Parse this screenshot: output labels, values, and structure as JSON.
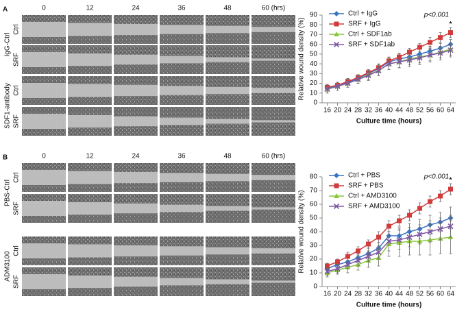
{
  "panels": [
    {
      "label": "A",
      "time_labels": [
        "0",
        "12",
        "24",
        "36",
        "48",
        "60 (hrs)"
      ],
      "groups": [
        {
          "name": "IgG-Ctrl",
          "rows": [
            "Ctrl",
            "SRF"
          ]
        },
        {
          "name": "SDF1-antibody",
          "rows": [
            "Ctrl",
            "SRF"
          ]
        }
      ]
    },
    {
      "label": "B",
      "time_labels": [
        "0",
        "12",
        "24",
        "36",
        "48",
        "60 (hrs)"
      ],
      "groups": [
        {
          "name": "PBS-Ctrl",
          "rows": [
            "Ctrl",
            "SRF"
          ]
        },
        {
          "name": "ADM3100",
          "rows": [
            "Ctrl",
            "SRF"
          ]
        }
      ]
    }
  ],
  "chart_data": [
    {
      "type": "line",
      "ylabel": "Relative wound density (%)",
      "xlabel": "Culture time (hours)",
      "annotation": "p<0.001",
      "star": "*",
      "x": [
        16,
        20,
        24,
        28,
        32,
        36,
        40,
        44,
        48,
        52,
        56,
        60,
        64
      ],
      "xlim": [
        14,
        66
      ],
      "xticks": [
        16,
        20,
        24,
        28,
        32,
        36,
        40,
        44,
        48,
        52,
        56,
        60,
        64
      ],
      "ylim": [
        0,
        90
      ],
      "yticks": [
        0,
        10,
        20,
        30,
        40,
        50,
        60,
        70,
        80,
        90
      ],
      "series": [
        {
          "name": "Ctrl + IgG",
          "color": "#3b74c4",
          "marker": "diamond",
          "values": [
            15,
            18,
            21,
            25,
            30,
            35,
            42,
            45,
            47,
            50,
            53,
            56,
            60
          ],
          "errors": [
            3,
            3,
            3,
            3,
            3,
            4,
            4,
            5,
            5,
            5,
            5,
            5,
            5
          ]
        },
        {
          "name": "SRF + IgG",
          "color": "#d23b3b",
          "marker": "square",
          "values": [
            16,
            18,
            22,
            26,
            31,
            36,
            43,
            47,
            52,
            57,
            62,
            67,
            72
          ],
          "errors": [
            3,
            3,
            3,
            3,
            3,
            4,
            4,
            4,
            4,
            4,
            5,
            5,
            5
          ]
        },
        {
          "name": "Ctrl + SDF1ab",
          "color": "#8cc63f",
          "marker": "triangle",
          "values": [
            14,
            17,
            20,
            24,
            29,
            33,
            40,
            42,
            45,
            47,
            49,
            52,
            55
          ],
          "errors": [
            4,
            4,
            4,
            4,
            5,
            5,
            6,
            6,
            6,
            6,
            6,
            6,
            6
          ]
        },
        {
          "name": "SRF + SDF1ab",
          "color": "#7e57a7",
          "marker": "x",
          "values": [
            14,
            17,
            20,
            24,
            28,
            33,
            40,
            42,
            44,
            46,
            49,
            51,
            54
          ],
          "errors": [
            4,
            4,
            4,
            4,
            5,
            5,
            6,
            6,
            7,
            7,
            7,
            7,
            7
          ]
        }
      ]
    },
    {
      "type": "line",
      "ylabel": "Relative wound density (%)",
      "xlabel": "Culture time (hours)",
      "annotation": "p<0.001",
      "star": "*",
      "x": [
        16,
        20,
        24,
        28,
        32,
        36,
        40,
        44,
        48,
        52,
        56,
        60,
        64
      ],
      "xlim": [
        14,
        66
      ],
      "xticks": [
        16,
        20,
        24,
        28,
        32,
        36,
        40,
        44,
        48,
        52,
        56,
        60,
        64
      ],
      "ylim": [
        0,
        80
      ],
      "yticks": [
        0,
        10,
        20,
        30,
        40,
        50,
        60,
        70,
        80
      ],
      "series": [
        {
          "name": "Ctrl + PBS",
          "color": "#3b74c4",
          "marker": "diamond",
          "values": [
            13,
            16,
            18,
            21,
            24,
            28,
            37,
            37,
            40,
            42,
            45,
            47,
            50
          ],
          "errors": [
            3,
            3,
            3,
            3,
            4,
            4,
            6,
            6,
            6,
            7,
            7,
            7,
            8
          ]
        },
        {
          "name": "SRF + PBS",
          "color": "#d23b3b",
          "marker": "square",
          "values": [
            15,
            18,
            22,
            26,
            31,
            36,
            44,
            48,
            52,
            57,
            62,
            66,
            71
          ],
          "errors": [
            2,
            2,
            3,
            3,
            3,
            4,
            4,
            4,
            4,
            4,
            4,
            4,
            4
          ]
        },
        {
          "name": "Ctrl + AMD3100",
          "color": "#8cc63f",
          "marker": "triangle",
          "values": [
            10,
            12,
            14,
            16,
            19,
            21,
            31,
            32,
            33,
            33,
            34,
            35,
            36
          ],
          "errors": [
            3,
            3,
            4,
            4,
            5,
            6,
            9,
            10,
            10,
            10,
            11,
            11,
            12
          ]
        },
        {
          "name": "SRF + AMD3100",
          "color": "#7e57a7",
          "marker": "x",
          "values": [
            11,
            13,
            16,
            19,
            22,
            25,
            33,
            34,
            36,
            38,
            40,
            42,
            44
          ],
          "errors": [
            3,
            3,
            3,
            4,
            4,
            5,
            7,
            7,
            7,
            7,
            8,
            8,
            8
          ]
        }
      ]
    }
  ]
}
